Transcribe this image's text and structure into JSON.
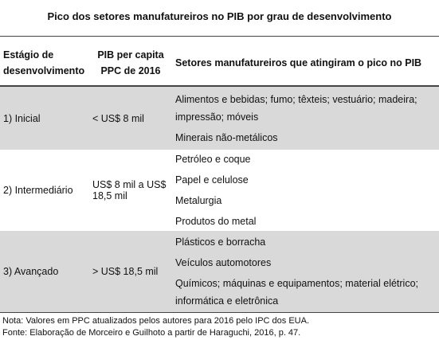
{
  "title": "Pico dos setores manufatureiros no PIB por grau de desenvolvimento",
  "table": {
    "header": [
      "Estágio de desenvolvimento",
      "PIB per capita PPC de 2016",
      "Setores manufatureiros que atingiram o pico no PIB"
    ],
    "rows": [
      {
        "stage": "1) Inicial",
        "gdp": "< US$ 8 mil",
        "sectors": [
          "Alimentos e bebidas; fumo; têxteis; vestuário; madeira; impressão; móveis",
          "Minerais não-metálicos"
        ]
      },
      {
        "stage": "2) Intermediário",
        "gdp": "US$ 8 mil a US$ 18,5 mil",
        "sectors": [
          "Petróleo e coque",
          "Papel e celulose",
          "Metalurgia",
          "Produtos do metal"
        ]
      },
      {
        "stage": "3) Avançado",
        "gdp": "> US$ 18,5 mil",
        "sectors": [
          "Plásticos e borracha",
          "Veículos automotores",
          "Químicos; máquinas e equipamentos; material elétrico; informática e eletrônica"
        ]
      }
    ]
  },
  "notes": [
    "Nota: Valores em PPC atualizados pelos autores para 2016 pelo IPC dos EUA.",
    "Fonte: Elaboração de Morceiro e Guilhoto a partir de Haraguchi, 2016, p. 47."
  ]
}
